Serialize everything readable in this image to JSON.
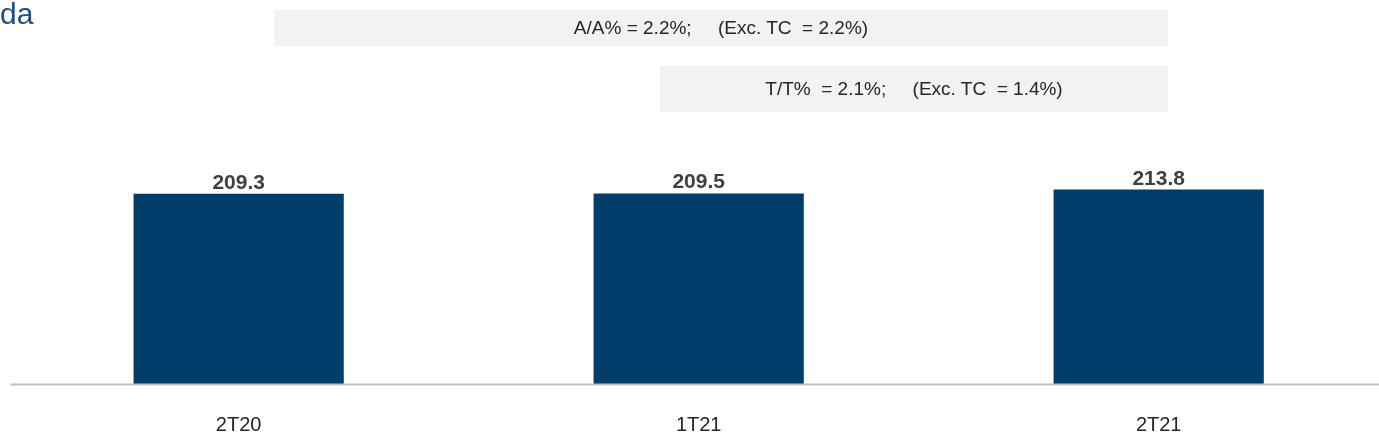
{
  "chart_data": {
    "type": "bar",
    "title": "da",
    "categories": [
      "2T20",
      "1T21",
      "2T21"
    ],
    "values": [
      209.3,
      209.5,
      213.8
    ],
    "color": "#003d6b",
    "tick_labels": "x",
    "data_labels": true,
    "annotations": [
      "A/A% = 2.2%;     (Exc. TC  = 2.2%)",
      "T/T%  = 2.1%;     (Exc. TC  = 1.4%)"
    ]
  }
}
